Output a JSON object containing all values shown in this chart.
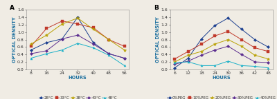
{
  "A": {
    "hours": [
      8,
      16,
      24,
      32,
      40,
      48,
      56
    ],
    "series": {
      "28°C": [
        0.52,
        0.72,
        0.82,
        1.4,
        0.72,
        0.42,
        0.3
      ],
      "33°C": [
        0.62,
        1.1,
        1.3,
        1.22,
        1.12,
        0.8,
        0.62
      ],
      "38°C": [
        0.68,
        0.92,
        1.22,
        1.38,
        1.08,
        0.8,
        0.52
      ],
      "43°C": [
        0.42,
        0.5,
        0.82,
        0.92,
        0.68,
        0.42,
        0.3
      ],
      "48°C": [
        0.3,
        0.42,
        0.52,
        0.7,
        0.58,
        0.38,
        0.1
      ]
    },
    "colors": {
      "28°C": "#1a3e8f",
      "33°C": "#c0392b",
      "38°C": "#b8a000",
      "43°C": "#5b2c8f",
      "48°C": "#1ab0c8"
    },
    "markers": {
      "28°C": "D",
      "33°C": "s",
      "38°C": "*",
      "43°C": "D",
      "48°C": "^"
    },
    "ylabel": "OPTICAL DENSITY",
    "xlabel": "HOURS",
    "ylim": [
      0,
      1.6
    ],
    "yticks": [
      0,
      0.2,
      0.4,
      0.6,
      0.8,
      1.0,
      1.2,
      1.4,
      1.6
    ],
    "label": "A"
  },
  "B": {
    "hours": [
      6,
      12,
      18,
      24,
      30,
      36,
      42,
      48
    ],
    "series": {
      "0%PEG": [
        0.04,
        0.3,
        0.82,
        1.18,
        1.38,
        1.08,
        0.8,
        0.6
      ],
      "10%PEG": [
        0.28,
        0.48,
        0.68,
        0.9,
        1.02,
        0.8,
        0.58,
        0.48
      ],
      "20%PEG": [
        0.2,
        0.38,
        0.48,
        0.68,
        0.8,
        0.62,
        0.38,
        0.28
      ],
      "30%PEG": [
        0.14,
        0.22,
        0.38,
        0.52,
        0.62,
        0.4,
        0.2,
        0.18
      ],
      "40%PEG": [
        0.18,
        0.2,
        0.1,
        0.1,
        0.22,
        0.1,
        0.08,
        0.04
      ]
    },
    "colors": {
      "0%PEG": "#1a3e8f",
      "10%PEG": "#c0392b",
      "20%PEG": "#b8a000",
      "30%PEG": "#5b2c8f",
      "40%PEG": "#1ab0c8"
    },
    "markers": {
      "0%PEG": "D",
      "10%PEG": "s",
      "20%PEG": "*",
      "30%PEG": "D",
      "40%PEG": "^"
    },
    "ylabel": "OPTICAL DENSITY",
    "xlabel": "HOURS",
    "ylim": [
      0,
      1.6
    ],
    "yticks": [
      0,
      0.2,
      0.4,
      0.6,
      0.8,
      1.0,
      1.2,
      1.4,
      1.6
    ],
    "label": "B"
  },
  "bg_color": "#f0ece4",
  "legend_fontsize": 4.0,
  "tick_fontsize": 4.5,
  "label_fontsize": 4.8,
  "axis_label_fontsize": 4.8,
  "linewidth": 0.7,
  "markersize": 2.2,
  "star_markersize": 3.5
}
